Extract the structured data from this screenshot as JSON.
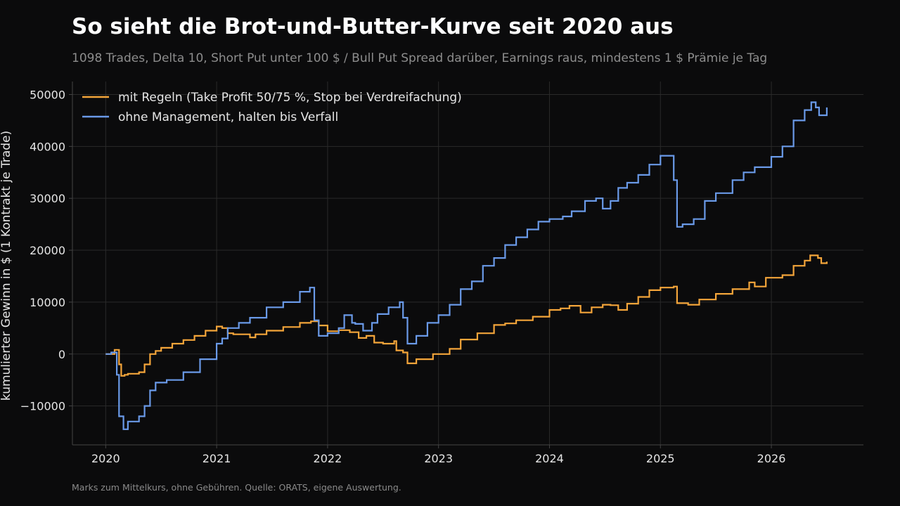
{
  "header": {
    "title": "So sieht die Brot-und-Butter-Kurve seit 2020 aus",
    "subtitle": "1098 Trades, Delta 10, Short Put unter 100 $ / Bull Put Spread darüber, Earnings raus, mindestens 1 $ Prämie je Tag"
  },
  "footer": {
    "note": "Marks zum Mittelkurs, ohne Gebühren. Quelle: ORATS, eigene Auswertung."
  },
  "colors": {
    "background": "#0b0b0c",
    "grid": "#2a2a2a",
    "axis": "#444444",
    "text": "#e6e6e6",
    "series_rules": "#f4a53a",
    "series_hold": "#6a9ae8"
  },
  "chart_data": {
    "type": "line",
    "title": "So sieht die Brot-und-Butter-Kurve seit 2020 aus",
    "xlabel": "",
    "ylabel": "kumulierter Gewinn in $ (1 Kontrakt je Trade)",
    "xlim": [
      2019.7,
      2026.83
    ],
    "ylim": [
      -17500,
      52500
    ],
    "x_ticks": [
      2020,
      2021,
      2022,
      2023,
      2024,
      2025,
      2026
    ],
    "x_tick_labels": [
      "2020",
      "2021",
      "2022",
      "2023",
      "2024",
      "2025",
      "2026"
    ],
    "y_ticks": [
      -10000,
      0,
      10000,
      20000,
      30000,
      40000,
      50000
    ],
    "y_tick_labels": [
      "−10000",
      "0",
      "10000",
      "20000",
      "30000",
      "40000",
      "50000"
    ],
    "grid": true,
    "legend_position": "top-left",
    "series": [
      {
        "name": "mit Regeln (Take Profit 50/75 %, Stop bei Verdreifachung)",
        "color": "#f4a53a",
        "x": [
          2020.0,
          2020.08,
          2020.12,
          2020.14,
          2020.17,
          2020.2,
          2020.3,
          2020.35,
          2020.4,
          2020.45,
          2020.5,
          2020.6,
          2020.7,
          2020.8,
          2020.9,
          2021.0,
          2021.05,
          2021.1,
          2021.15,
          2021.2,
          2021.3,
          2021.35,
          2021.45,
          2021.6,
          2021.75,
          2021.85,
          2021.92,
          2022.0,
          2022.1,
          2022.2,
          2022.28,
          2022.35,
          2022.42,
          2022.5,
          2022.6,
          2022.62,
          2022.68,
          2022.72,
          2022.8,
          2022.95,
          2023.1,
          2023.2,
          2023.35,
          2023.5,
          2023.6,
          2023.7,
          2023.85,
          2024.0,
          2024.1,
          2024.18,
          2024.28,
          2024.38,
          2024.48,
          2024.55,
          2024.62,
          2024.7,
          2024.8,
          2024.9,
          2025.0,
          2025.12,
          2025.15,
          2025.25,
          2025.35,
          2025.5,
          2025.65,
          2025.8,
          2025.85,
          2025.95,
          2026.1,
          2026.2,
          2026.3,
          2026.35,
          2026.42,
          2026.45,
          2026.5
        ],
        "values": [
          0,
          800,
          -2000,
          -4200,
          -4000,
          -3800,
          -3500,
          -2000,
          0,
          600,
          1200,
          2000,
          2700,
          3500,
          4500,
          5300,
          5000,
          4000,
          3800,
          3800,
          3200,
          3800,
          4500,
          5200,
          6000,
          6300,
          5500,
          4400,
          4600,
          4200,
          3100,
          3500,
          2200,
          2000,
          2500,
          700,
          300,
          -1800,
          -1000,
          0,
          1000,
          2800,
          4000,
          5600,
          5900,
          6500,
          7200,
          8500,
          8800,
          9300,
          8000,
          9000,
          9500,
          9400,
          8500,
          9700,
          11000,
          12300,
          12800,
          13000,
          9800,
          9500,
          10500,
          11600,
          12500,
          13800,
          13000,
          14700,
          15200,
          17000,
          18000,
          19000,
          18500,
          17500,
          17800
        ]
      },
      {
        "name": "ohne Management, halten bis Verfall",
        "color": "#6a9ae8",
        "x": [
          2020.0,
          2020.05,
          2020.1,
          2020.12,
          2020.16,
          2020.2,
          2020.3,
          2020.35,
          2020.4,
          2020.45,
          2020.55,
          2020.7,
          2020.85,
          2021.0,
          2021.05,
          2021.1,
          2021.2,
          2021.3,
          2021.45,
          2021.6,
          2021.75,
          2021.84,
          2021.88,
          2021.92,
          2022.0,
          2022.1,
          2022.15,
          2022.22,
          2022.25,
          2022.32,
          2022.4,
          2022.45,
          2022.55,
          2022.65,
          2022.68,
          2022.72,
          2022.8,
          2022.9,
          2023.0,
          2023.1,
          2023.2,
          2023.3,
          2023.4,
          2023.5,
          2023.6,
          2023.7,
          2023.8,
          2023.9,
          2024.0,
          2024.12,
          2024.2,
          2024.32,
          2024.42,
          2024.48,
          2024.55,
          2024.62,
          2024.7,
          2024.8,
          2024.9,
          2025.0,
          2025.12,
          2025.15,
          2025.2,
          2025.3,
          2025.4,
          2025.5,
          2025.65,
          2025.75,
          2025.85,
          2026.0,
          2026.1,
          2026.2,
          2026.3,
          2026.36,
          2026.4,
          2026.43,
          2026.5
        ],
        "values": [
          0,
          300,
          -4000,
          -12000,
          -14500,
          -13000,
          -12000,
          -10000,
          -7000,
          -5500,
          -5000,
          -3500,
          -1000,
          2000,
          3000,
          5000,
          6000,
          7000,
          9000,
          10000,
          12000,
          12800,
          6500,
          3500,
          4000,
          5000,
          7500,
          6000,
          5800,
          4500,
          6000,
          7700,
          9000,
          10000,
          7000,
          2000,
          3500,
          6000,
          7500,
          9500,
          12500,
          14000,
          17000,
          18500,
          21000,
          22500,
          24000,
          25500,
          26000,
          26500,
          27500,
          29500,
          30000,
          28000,
          29500,
          32000,
          33000,
          34500,
          36500,
          38200,
          33500,
          24500,
          25000,
          26000,
          29500,
          31000,
          33500,
          35000,
          36000,
          38000,
          40000,
          45000,
          47000,
          48500,
          47500,
          46000,
          47500
        ]
      }
    ]
  }
}
